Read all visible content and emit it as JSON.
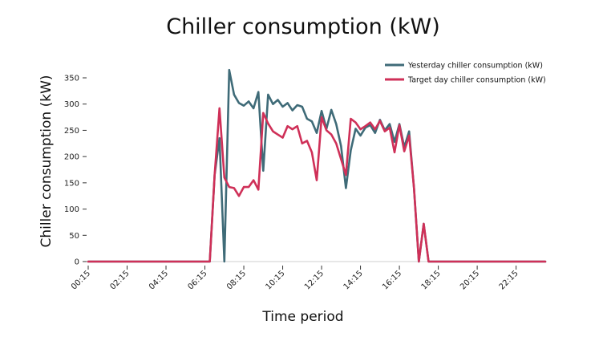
{
  "chart_data": {
    "type": "line",
    "title": "Chiller consumption (kW)",
    "xlabel": "Time period",
    "ylabel": "Chiller consumption (kW)",
    "ylim": [
      0,
      360
    ],
    "yticks": [
      0,
      50,
      100,
      150,
      200,
      250,
      300,
      350
    ],
    "x_tick_labels": [
      "00:15",
      "02:15",
      "04:15",
      "06:15",
      "08:15",
      "10:15",
      "12:15",
      "14:15",
      "16:15",
      "18:15",
      "20:15",
      "22:15"
    ],
    "grid": false,
    "legend_position": "top-right",
    "x": [
      "00:15",
      "00:30",
      "00:45",
      "01:00",
      "01:15",
      "01:30",
      "01:45",
      "02:00",
      "02:15",
      "02:30",
      "02:45",
      "03:00",
      "03:15",
      "03:30",
      "03:45",
      "04:00",
      "04:15",
      "04:30",
      "04:45",
      "05:00",
      "05:15",
      "05:30",
      "05:45",
      "06:00",
      "06:15",
      "06:30",
      "06:45",
      "07:00",
      "07:15",
      "07:30",
      "07:45",
      "08:00",
      "08:15",
      "08:30",
      "08:45",
      "09:00",
      "09:15",
      "09:30",
      "09:45",
      "10:00",
      "10:15",
      "10:30",
      "10:45",
      "11:00",
      "11:15",
      "11:30",
      "11:45",
      "12:00",
      "12:15",
      "12:30",
      "12:45",
      "13:00",
      "13:15",
      "13:30",
      "13:45",
      "14:00",
      "14:15",
      "14:30",
      "14:45",
      "15:00",
      "15:15",
      "15:30",
      "15:45",
      "16:00",
      "16:15",
      "16:30",
      "16:45",
      "17:00",
      "17:15",
      "17:30",
      "17:45",
      "18:00",
      "18:15",
      "18:30",
      "18:45",
      "19:00",
      "19:15",
      "19:30",
      "19:45",
      "20:00",
      "20:15",
      "20:30",
      "20:45",
      "21:00",
      "21:15",
      "21:30",
      "21:45",
      "22:00",
      "22:15",
      "22:30",
      "22:45",
      "23:00",
      "23:15",
      "23:30",
      "23:45"
    ],
    "series": [
      {
        "name": "Yesterday chiller consumption (kW)",
        "color": "#3f6b78",
        "values": [
          0,
          0,
          0,
          0,
          0,
          0,
          0,
          0,
          0,
          0,
          0,
          0,
          0,
          0,
          0,
          0,
          0,
          0,
          0,
          0,
          0,
          0,
          0,
          0,
          0,
          0,
          165,
          235,
          0,
          365,
          318,
          302,
          297,
          305,
          292,
          323,
          173,
          318,
          300,
          308,
          295,
          302,
          288,
          298,
          295,
          272,
          267,
          245,
          287,
          253,
          289,
          262,
          220,
          140,
          212,
          253,
          240,
          255,
          260,
          245,
          270,
          250,
          262,
          228,
          262,
          218,
          248,
          140,
          0,
          72,
          0,
          0,
          0,
          0,
          0,
          0,
          0,
          0,
          0,
          0,
          0,
          0,
          0,
          0,
          0,
          0,
          0,
          0,
          0,
          0,
          0,
          0,
          0,
          0,
          0
        ]
      },
      {
        "name": "Target day chiller consumption (kW)",
        "color": "#cf3058",
        "values": [
          0,
          0,
          0,
          0,
          0,
          0,
          0,
          0,
          0,
          0,
          0,
          0,
          0,
          0,
          0,
          0,
          0,
          0,
          0,
          0,
          0,
          0,
          0,
          0,
          0,
          0,
          165,
          292,
          160,
          142,
          140,
          125,
          142,
          142,
          155,
          137,
          283,
          263,
          248,
          242,
          236,
          258,
          252,
          258,
          225,
          230,
          208,
          155,
          275,
          250,
          242,
          225,
          195,
          165,
          272,
          265,
          252,
          258,
          265,
          252,
          268,
          248,
          255,
          208,
          260,
          210,
          240,
          140,
          0,
          72,
          0,
          0,
          0,
          0,
          0,
          0,
          0,
          0,
          0,
          0,
          0,
          0,
          0,
          0,
          0,
          0,
          0,
          0,
          0,
          0,
          0,
          0,
          0,
          0,
          0
        ]
      }
    ]
  }
}
